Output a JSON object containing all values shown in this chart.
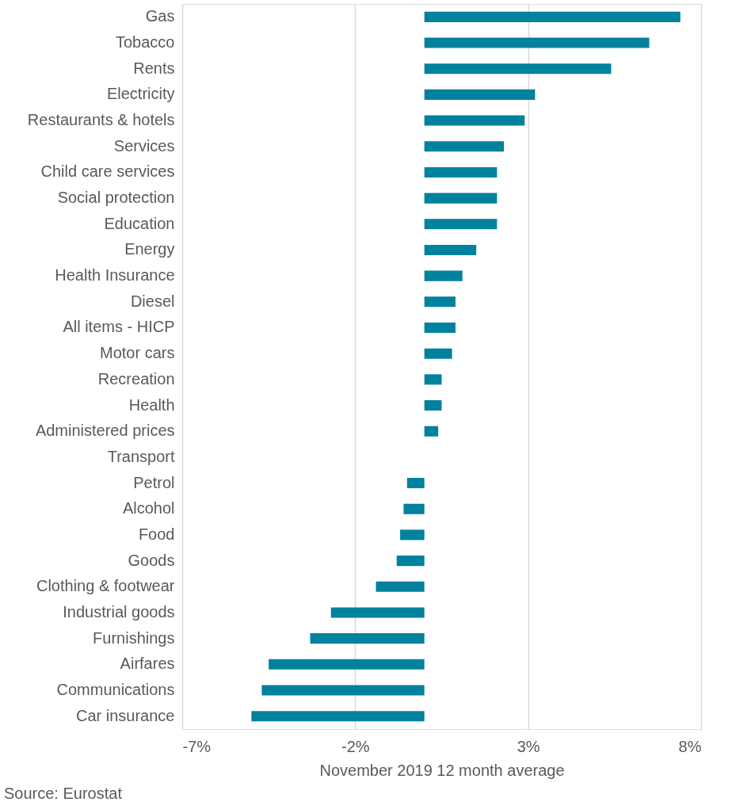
{
  "chart_data": {
    "type": "bar",
    "orientation": "horizontal",
    "xlabel": "November 2019 12 month average",
    "categories": [
      "Gas",
      "Tobacco",
      "Rents",
      "Electricity",
      "Restaurants & hotels",
      "Services",
      "Child care services",
      "Social protection",
      "Education",
      "Energy",
      "Health Insurance",
      "Diesel",
      "All items - HICP",
      "Motor cars",
      "Recreation",
      "Health",
      "Administered prices",
      "Transport",
      "Petrol",
      "Alcohol",
      "Food",
      "Goods",
      "Clothing & footwear",
      "Industrial goods",
      "Furnishings",
      "Airfares",
      "Communications",
      "Car insurance"
    ],
    "values": [
      7.4,
      6.5,
      5.4,
      3.2,
      2.9,
      2.3,
      2.1,
      2.1,
      2.1,
      1.5,
      1.1,
      0.9,
      0.9,
      0.8,
      0.5,
      0.5,
      0.4,
      0,
      -0.5,
      -0.6,
      -0.7,
      -0.8,
      -1.4,
      -2.7,
      -3.3,
      -4.5,
      -4.7,
      -5.0
    ],
    "color": "#00819e",
    "xlim": [
      -7,
      8
    ],
    "xticks": [
      {
        "value": -7,
        "label": "-7%"
      },
      {
        "value": -2,
        "label": "-2%"
      },
      {
        "value": 3,
        "label": "3%"
      },
      {
        "value": 8,
        "label": "8%"
      }
    ],
    "grid": "x",
    "annotations": [
      "Source: Eurostat"
    ]
  }
}
